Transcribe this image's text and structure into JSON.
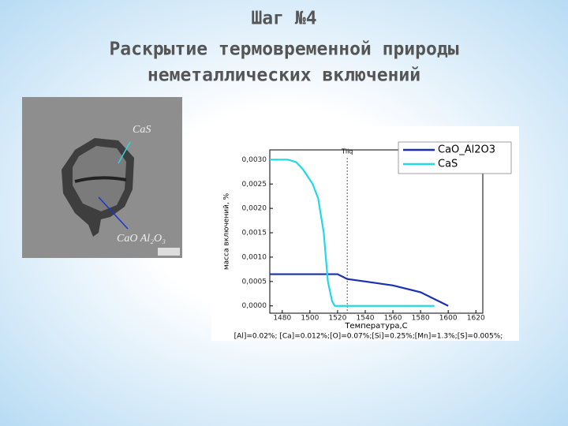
{
  "header": {
    "title": "Шаг №4",
    "subtitle_lines": [
      "Раскрытие термовременной природы",
      "неметаллических включений"
    ]
  },
  "micrograph": {
    "labels": [
      "CaS",
      "CaO Al₂O₃"
    ]
  },
  "chart_data": {
    "type": "line",
    "xlabel": "Температура,C",
    "ylabel": "масса включений, %",
    "caption": "[Al]=0.02%; [Ca]=0.012%;[O]=0.07%;[Si]=0.25%;[Mn]=1.3%;[S]=0.005%;",
    "xlim": [
      1471,
      1625
    ],
    "ylim": [
      -0.00015,
      0.0032
    ],
    "xticks": [
      1480,
      1500,
      1520,
      1540,
      1560,
      1580,
      1600,
      1620
    ],
    "yticks": [
      {
        "value": 0,
        "label": "0,0000"
      },
      {
        "value": 0.0005,
        "label": "0,0005"
      },
      {
        "value": 0.001,
        "label": "0,0010"
      },
      {
        "value": 0.0015,
        "label": "0,0015"
      },
      {
        "value": 0.002,
        "label": "0,0020"
      },
      {
        "value": 0.0025,
        "label": "0,0025"
      },
      {
        "value": 0.003,
        "label": "0,0030"
      }
    ],
    "legend": "upper right",
    "annotation": {
      "text": "Tliq",
      "x": 1527
    },
    "series": [
      {
        "name": "CaO_Al2O3",
        "color": "#1a2fb0",
        "x": [
          1471,
          1520,
          1527,
          1540,
          1560,
          1580,
          1600
        ],
        "values": [
          0.00065,
          0.00065,
          0.00055,
          0.0005,
          0.00042,
          0.00028,
          0
        ]
      },
      {
        "name": "CaS",
        "color": "#22d8e8",
        "x": [
          1471,
          1484,
          1490,
          1495,
          1502,
          1506,
          1510,
          1513,
          1516,
          1518,
          1590
        ],
        "values": [
          0.003,
          0.003,
          0.00295,
          0.0028,
          0.0025,
          0.0022,
          0.0015,
          0.0005,
          0.0001,
          0,
          0
        ]
      }
    ]
  }
}
